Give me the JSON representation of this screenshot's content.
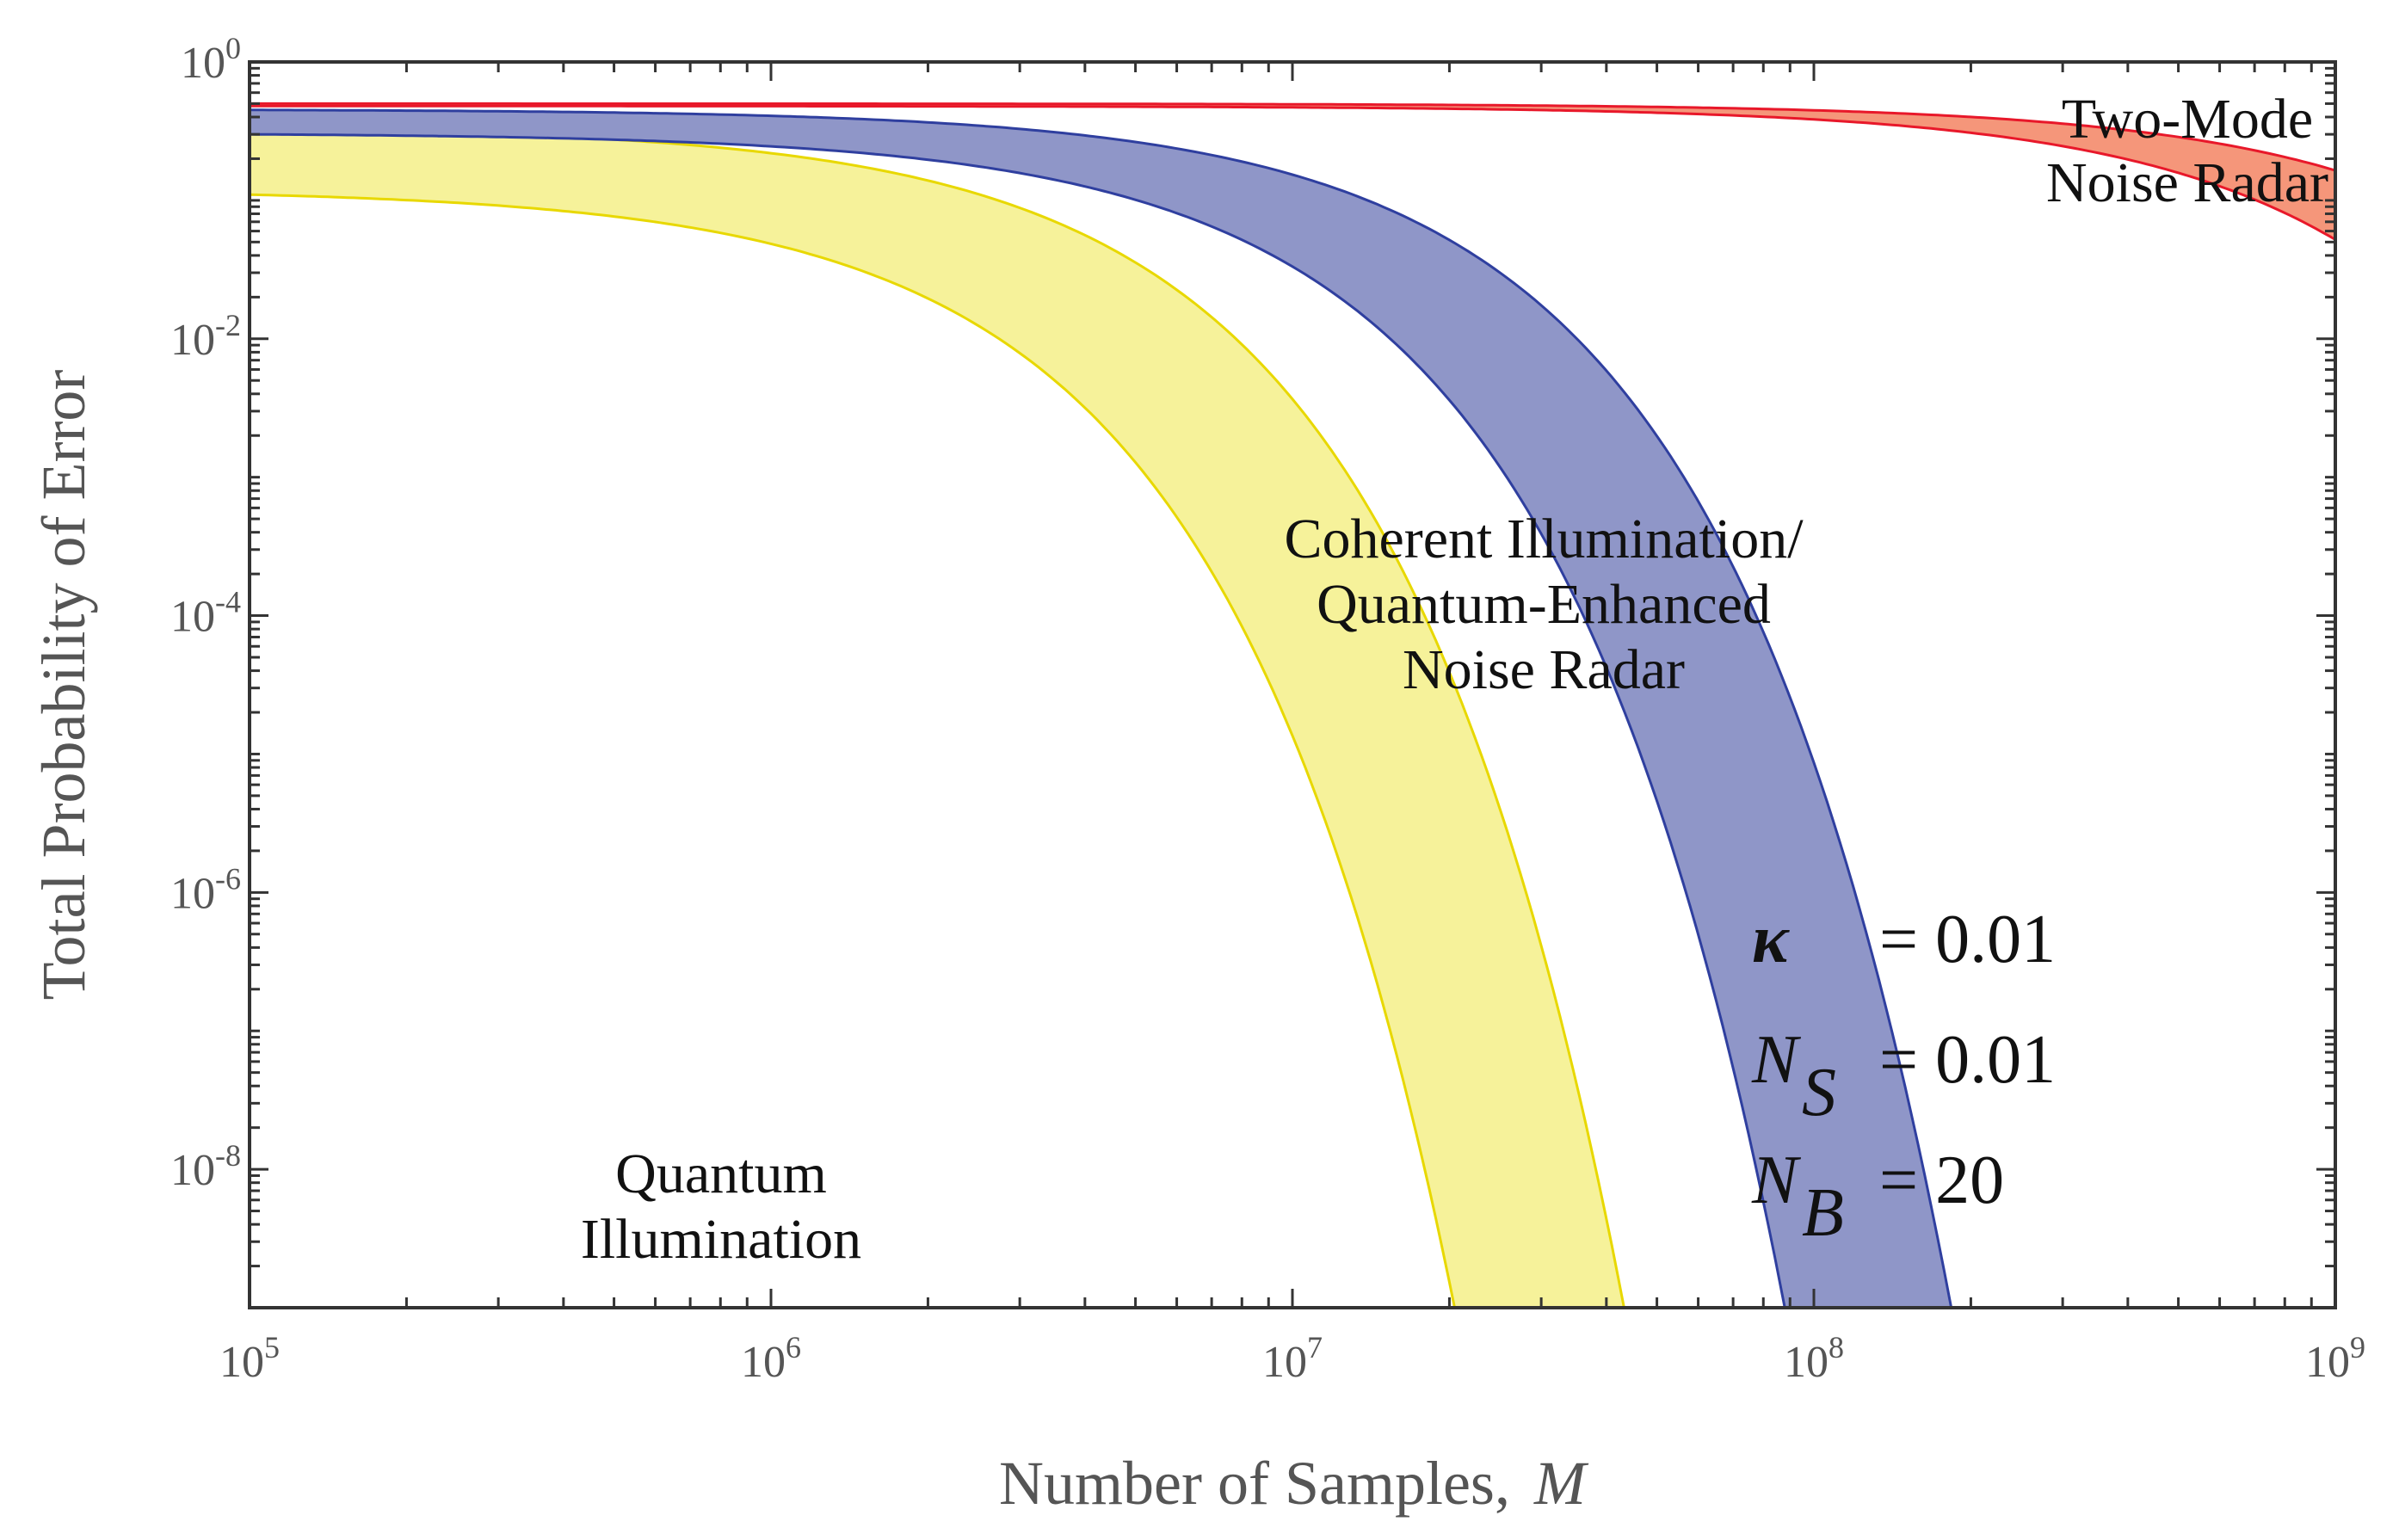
{
  "chart_data": {
    "type": "area",
    "xscale": "log",
    "yscale": "log",
    "xlim": [
      100000,
      1000000000
    ],
    "ylim": [
      1e-09,
      1
    ],
    "xlabel": "Number of Samples,",
    "xlabel_var": "M",
    "ylabel": "Total Probability of Error",
    "x_ticks": [
      {
        "base": "10",
        "exp": "5"
      },
      {
        "base": "10",
        "exp": "6"
      },
      {
        "base": "10",
        "exp": "7"
      },
      {
        "base": "10",
        "exp": "8"
      },
      {
        "base": "10",
        "exp": "9"
      }
    ],
    "y_ticks": [
      {
        "base": "10",
        "exp": "0"
      },
      {
        "base": "10",
        "exp": "-2"
      },
      {
        "base": "10",
        "exp": "-4"
      },
      {
        "base": "10",
        "exp": "-6"
      },
      {
        "base": "10",
        "exp": "-8"
      }
    ],
    "series": [
      {
        "name": "Quantum Illumination",
        "label_lines": [
          "Quantum",
          "Illumination"
        ],
        "fill": "#f6f29a",
        "stroke": "#e8d800",
        "lower_scale": 1100000,
        "upper_scale": 2200000,
        "lower_start": 0.11,
        "upper_start": 0.33
      },
      {
        "name": "Coherent Illumination/ Quantum-Enhanced Noise Radar",
        "label_lines": [
          "Coherent Illumination/",
          "Quantum-Enhanced",
          "Noise Radar"
        ],
        "fill": "#8f96c8",
        "stroke": "#2f3f9f",
        "lower_scale": 4500000,
        "upper_scale": 9200000,
        "lower_start": 0.3,
        "upper_start": 0.45
      },
      {
        "name": "Two-Mode Noise Radar",
        "label_lines": [
          "Two-Mode",
          "Noise Radar"
        ],
        "fill": "#f5967a",
        "stroke": "#e8182a",
        "lower_scale": 450000000,
        "upper_scale": 900000000,
        "lower_start": 0.48,
        "upper_start": 0.5
      }
    ],
    "parameters": [
      {
        "symbol": "κ",
        "sub": "",
        "value": "= 0.01"
      },
      {
        "symbol": "N",
        "sub": "S",
        "value": "= 0.01"
      },
      {
        "symbol": "N",
        "sub": "B",
        "value": "= 20"
      }
    ]
  }
}
